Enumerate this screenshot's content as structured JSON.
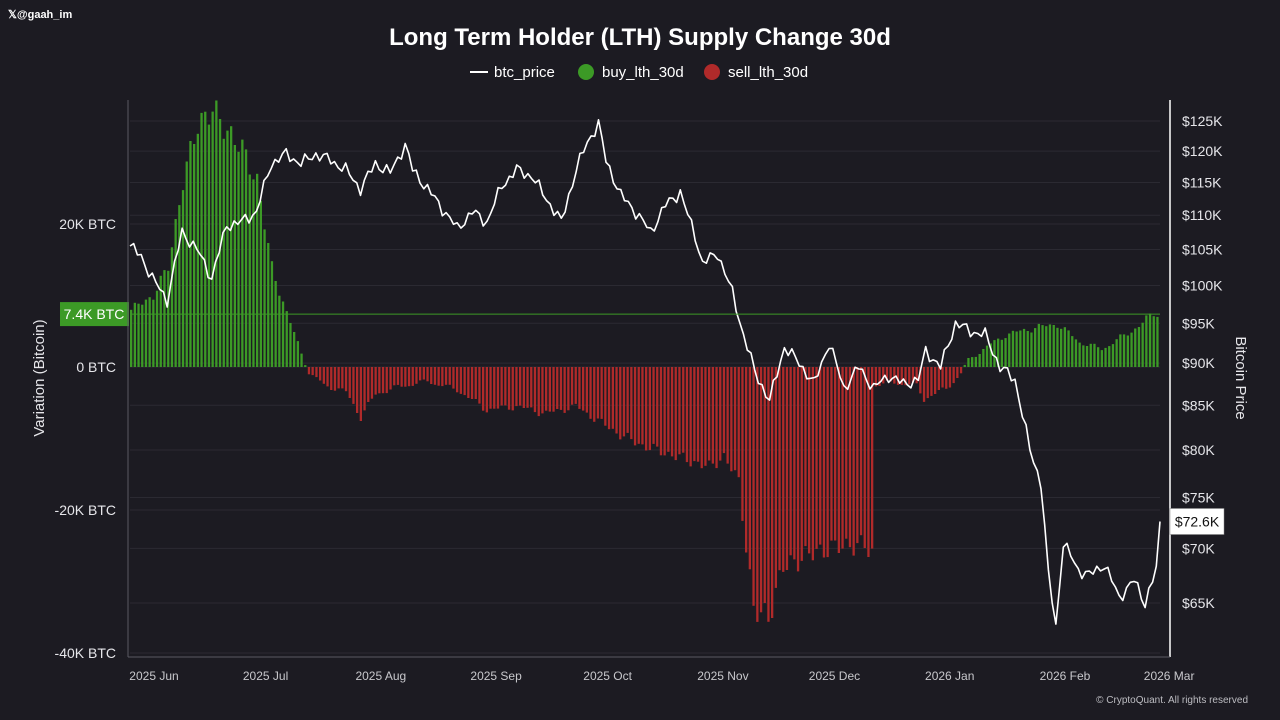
{
  "header": {
    "handle_mark": "𝕏",
    "handle": "@gaah_im"
  },
  "footer": {
    "copyright": "© CryptoQuant. All rights reserved"
  },
  "colors": {
    "background": "#1c1b22",
    "buy": "#3c9a26",
    "sell": "#b02a2a",
    "price": "#ffffff",
    "grid": "#2b2a32",
    "marker_line": "#3c9a26"
  },
  "chart_data": {
    "type": "bar",
    "title": "Long Term Holder (LTH) Supply Change 30d",
    "legend": [
      {
        "name": "btc_price",
        "style": "line"
      },
      {
        "name": "buy_lth_30d",
        "style": "dot"
      },
      {
        "name": "sell_lth_30d",
        "style": "dot"
      }
    ],
    "legend_position": "top-center",
    "ylabel_left": "Variation (Bitcoin)",
    "ylabel_right": "Bitcoin Price",
    "left_axis": {
      "ylim": [
        -40000,
        40000
      ],
      "ticks": [
        {
          "value": 20000,
          "label": "20K BTC"
        },
        {
          "value": 0,
          "label": "0 BTC"
        },
        {
          "value": -20000,
          "label": "-20K BTC"
        },
        {
          "value": -40000,
          "label": "-40K BTC"
        }
      ]
    },
    "right_axis": {
      "ylim": [
        61000,
        127000
      ],
      "ticks": [
        {
          "value": 125000,
          "label": "$125K"
        },
        {
          "value": 120000,
          "label": "$120K"
        },
        {
          "value": 115000,
          "label": "$115K"
        },
        {
          "value": 110000,
          "label": "$110K"
        },
        {
          "value": 105000,
          "label": "$105K"
        },
        {
          "value": 100000,
          "label": "$100K"
        },
        {
          "value": 95000,
          "label": "$95K"
        },
        {
          "value": 90000,
          "label": "$90K"
        },
        {
          "value": 85000,
          "label": "$85K"
        },
        {
          "value": 80000,
          "label": "$80K"
        },
        {
          "value": 75000,
          "label": "$75K"
        },
        {
          "value": 70000,
          "label": "$70K"
        },
        {
          "value": 65000,
          "label": "$65K"
        }
      ]
    },
    "x_axis": {
      "start": "2025-06-01",
      "days": 278,
      "ticks": [
        {
          "day": 0,
          "label": "2025 Jun"
        },
        {
          "day": 30,
          "label": "2025 Jul"
        },
        {
          "day": 61,
          "label": "2025 Aug"
        },
        {
          "day": 92,
          "label": "2025 Sep"
        },
        {
          "day": 122,
          "label": "2025 Oct"
        },
        {
          "day": 153,
          "label": "2025 Nov"
        },
        {
          "day": 183,
          "label": "2025 Dec"
        },
        {
          "day": 214,
          "label": "2026 Jan"
        },
        {
          "day": 245,
          "label": "2026 Feb"
        },
        {
          "day": 273,
          "label": "2026 Mar"
        }
      ]
    },
    "highlight_line": {
      "value": 7400,
      "label": "7.4K BTC"
    },
    "last_price_label": "$72.6K",
    "last_price": 72600,
    "lth_keypoints": [
      [
        0,
        8000
      ],
      [
        6,
        10000
      ],
      [
        10,
        14000
      ],
      [
        14,
        26000
      ],
      [
        18,
        34000
      ],
      [
        22,
        36000
      ],
      [
        26,
        33000
      ],
      [
        30,
        30500
      ],
      [
        34,
        26000
      ],
      [
        38,
        14000
      ],
      [
        42,
        7500
      ],
      [
        46,
        2000
      ],
      [
        48,
        -800
      ],
      [
        52,
        -2500
      ],
      [
        58,
        -3500
      ],
      [
        62,
        -7000
      ],
      [
        66,
        -3800
      ],
      [
        72,
        -2800
      ],
      [
        80,
        -2000
      ],
      [
        88,
        -3200
      ],
      [
        96,
        -6000
      ],
      [
        104,
        -5500
      ],
      [
        112,
        -6500
      ],
      [
        120,
        -5500
      ],
      [
        126,
        -7500
      ],
      [
        132,
        -9500
      ],
      [
        138,
        -11000
      ],
      [
        144,
        -12000
      ],
      [
        150,
        -13000
      ],
      [
        156,
        -14000
      ],
      [
        160,
        -12500
      ],
      [
        164,
        -16000
      ],
      [
        168,
        -34000
      ],
      [
        172,
        -35000
      ],
      [
        176,
        -28000
      ],
      [
        180,
        -27000
      ],
      [
        184,
        -26000
      ],
      [
        188,
        -25500
      ],
      [
        192,
        -25000
      ],
      [
        198,
        -25000
      ],
      [
        200,
        -26000
      ],
      [
        201,
        -2500
      ],
      [
        206,
        -2200
      ],
      [
        212,
        -2600
      ],
      [
        214,
        -4500
      ],
      [
        220,
        -3000
      ],
      [
        224,
        -1000
      ],
      [
        226,
        1000
      ],
      [
        230,
        2500
      ],
      [
        236,
        4500
      ],
      [
        244,
        5500
      ],
      [
        250,
        6000
      ],
      [
        256,
        3500
      ],
      [
        262,
        2500
      ],
      [
        270,
        5000
      ],
      [
        276,
        7500
      ],
      [
        277,
        7400
      ]
    ],
    "price_keypoints": [
      [
        0,
        105500
      ],
      [
        3,
        104000
      ],
      [
        6,
        101000
      ],
      [
        10,
        98000
      ],
      [
        14,
        107500
      ],
      [
        18,
        105000
      ],
      [
        22,
        101000
      ],
      [
        26,
        108500
      ],
      [
        30,
        109000
      ],
      [
        34,
        110500
      ],
      [
        38,
        118000
      ],
      [
        42,
        119500
      ],
      [
        46,
        118000
      ],
      [
        50,
        119500
      ],
      [
        54,
        118500
      ],
      [
        58,
        117000
      ],
      [
        62,
        114000
      ],
      [
        66,
        118000
      ],
      [
        70,
        116500
      ],
      [
        74,
        121000
      ],
      [
        76,
        117000
      ],
      [
        80,
        114000
      ],
      [
        84,
        111000
      ],
      [
        88,
        108000
      ],
      [
        92,
        110500
      ],
      [
        96,
        109000
      ],
      [
        100,
        114500
      ],
      [
        104,
        117000
      ],
      [
        108,
        116000
      ],
      [
        112,
        112500
      ],
      [
        116,
        109000
      ],
      [
        120,
        117000
      ],
      [
        123,
        121500
      ],
      [
        126,
        124500
      ],
      [
        128,
        118500
      ],
      [
        132,
        113000
      ],
      [
        136,
        110500
      ],
      [
        140,
        107500
      ],
      [
        144,
        111500
      ],
      [
        148,
        113500
      ],
      [
        150,
        110000
      ],
      [
        152,
        107000
      ],
      [
        154,
        103000
      ],
      [
        158,
        104500
      ],
      [
        162,
        99000
      ],
      [
        165,
        93500
      ],
      [
        168,
        89000
      ],
      [
        172,
        85500
      ],
      [
        176,
        92000
      ],
      [
        180,
        90000
      ],
      [
        184,
        87500
      ],
      [
        188,
        92500
      ],
      [
        192,
        87000
      ],
      [
        196,
        89500
      ],
      [
        200,
        87000
      ],
      [
        204,
        88500
      ],
      [
        208,
        87500
      ],
      [
        212,
        88000
      ],
      [
        214,
        91500
      ],
      [
        218,
        89500
      ],
      [
        222,
        95000
      ],
      [
        226,
        94000
      ],
      [
        230,
        93500
      ],
      [
        234,
        89500
      ],
      [
        238,
        88000
      ],
      [
        242,
        80000
      ],
      [
        245,
        76500
      ],
      [
        247,
        67500
      ],
      [
        249,
        63000
      ],
      [
        251,
        70500
      ],
      [
        255,
        68000
      ],
      [
        258,
        67500
      ],
      [
        262,
        68500
      ],
      [
        266,
        65500
      ],
      [
        270,
        67000
      ],
      [
        273,
        65000
      ],
      [
        276,
        68000
      ],
      [
        277,
        72600
      ]
    ]
  }
}
